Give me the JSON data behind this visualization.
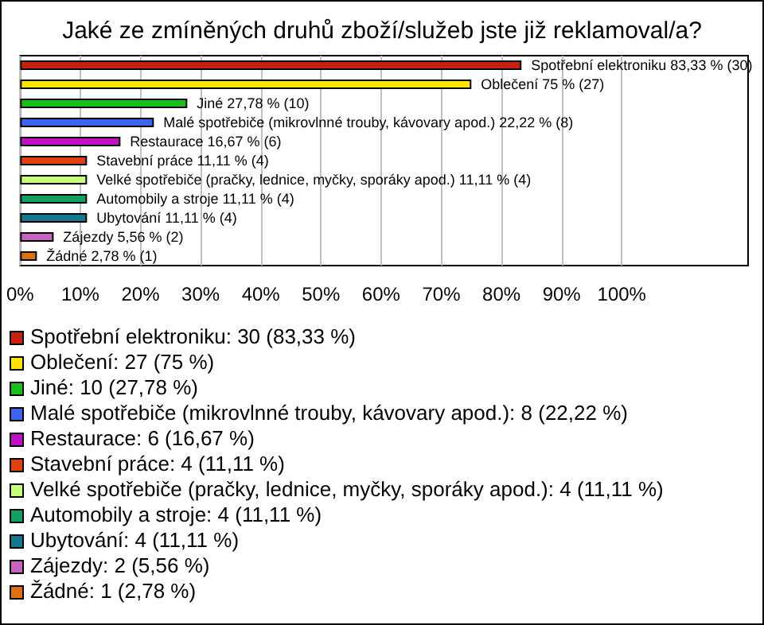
{
  "chart_data": {
    "type": "bar",
    "orientation": "horizontal",
    "title": "Jaké ze zmíněných druhů zboží/služeb jste již reklamoval/a?",
    "categories": [
      null,
      null,
      null,
      null,
      null,
      null,
      null,
      null,
      null,
      null,
      null
    ],
    "values": [
      83.33,
      75,
      27.78,
      22.22,
      16.67,
      11.11,
      11.11,
      11.11,
      11.11,
      5.56,
      2.78
    ],
    "colors": [
      "#c8200f",
      "#ffe400",
      "#18c018",
      "#3c64f0",
      "#c010c8",
      "#e04010",
      "#c8ff78",
      "#10a060",
      "#147890",
      "#c864c0",
      "#e07010"
    ],
    "value_labels": [
      "Spotřební elektroniku 83,33 % (30)",
      "Oblečení 75 % (27)",
      "Jiné 27,78 % (10)",
      "Malé spotřebiče (mikrovlnné trouby, kávovary apod.) 22,22 % (8)",
      "Restaurace 16,67 % (6)",
      "Stavební práce 11,11 % (4)",
      "Velké spotřebiče (pračky, lednice, myčky, sporáky apod.) 11,11 % (4)",
      "Automobily a stroje 11,11 % (4)",
      "Ubytování 11,11 % (4)",
      "Zájezdy 5,56 % (2)",
      "Žádné 2,78 % (1)"
    ],
    "xlim": [
      0,
      121
    ],
    "xticks": [
      {
        "value": 0,
        "label": "0%"
      },
      {
        "value": 10,
        "label": "10%"
      },
      {
        "value": 20,
        "label": "20%"
      },
      {
        "value": 30,
        "label": "30%"
      },
      {
        "value": 40,
        "label": "40%"
      },
      {
        "value": 50,
        "label": "50%"
      },
      {
        "value": 60,
        "label": "60%"
      },
      {
        "value": 70,
        "label": "70%"
      },
      {
        "value": 80,
        "label": "80%"
      },
      {
        "value": 90,
        "label": "90%"
      },
      {
        "value": 100,
        "label": "100%"
      }
    ],
    "grid": "x",
    "annotations": [
      "Spotřební elektroniku: 30 (83,33 %)",
      "Oblečení: 27 (75 %)",
      "Jiné: 10 (27,78 %)",
      "Malé spotřebiče (mikrovlnné trouby, kávovary apod.): 8 (22,22 %)",
      "Restaurace: 6 (16,67 %)",
      "Stavební práce: 4 (11,11 %)",
      "Velké spotřebiče (pračky, lednice, myčky, sporáky apod.): 4 (11,11 %)",
      "Automobily a stroje: 4 (11,11 %)",
      "Ubytování: 4 (11,11 %)",
      "Zájezdy: 2 (5,56 %)",
      "Žádné: 1 (2,78 %)"
    ]
  }
}
